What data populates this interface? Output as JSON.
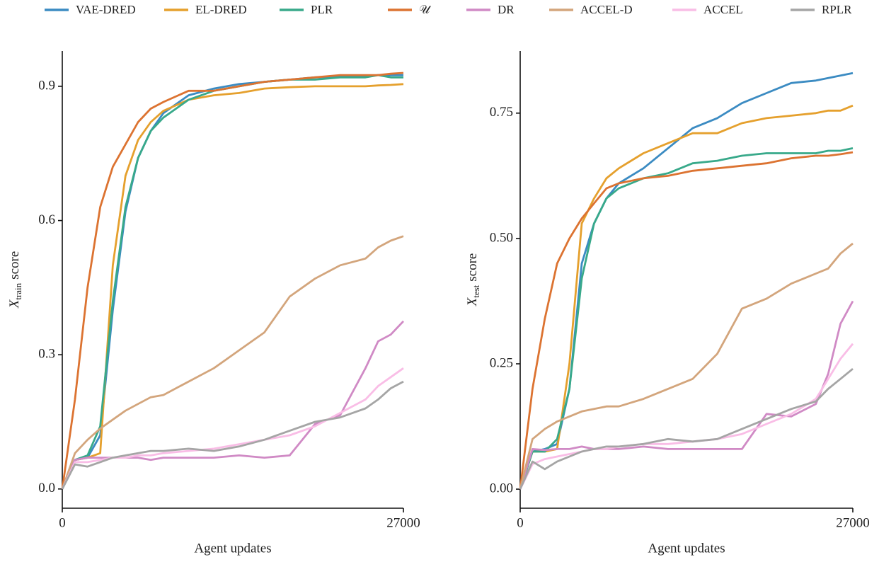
{
  "legend": [
    {
      "name": "VAE-DRED",
      "color": "#3b8bc2"
    },
    {
      "name": "EL-DRED",
      "color": "#e5a02d"
    },
    {
      "name": "PLR",
      "color": "#38a98a"
    },
    {
      "name": "𝒰",
      "color": "#dc7331"
    },
    {
      "name": "DR",
      "color": "#d08ac5"
    },
    {
      "name": "ACCEL-D",
      "color": "#d3a57c"
    },
    {
      "name": "ACCEL",
      "color": "#f9bde6"
    },
    {
      "name": "RPLR",
      "color": "#a5a5a5"
    }
  ],
  "chart_data": [
    {
      "type": "line",
      "xlabel": "Agent updates",
      "ylabel": [
        "X",
        "train",
        "score"
      ],
      "x": [
        0,
        1000,
        2000,
        3000,
        4000,
        5000,
        6000,
        7000,
        8000,
        10000,
        12000,
        14000,
        16000,
        18000,
        20000,
        22000,
        24000,
        25000,
        26000,
        27000
      ],
      "xlim": [
        0,
        27000
      ],
      "xticks": [
        0,
        27000
      ],
      "ylim": [
        -0.043,
        0.979
      ],
      "yticks": [
        {
          "value": 0,
          "label": "0.0"
        },
        0.3,
        0.6,
        0.9
      ],
      "series": [
        {
          "values": [
            0,
            0.065,
            0.07,
            0.12,
            0.4,
            0.62,
            0.74,
            0.8,
            0.84,
            0.88,
            0.895,
            0.905,
            0.91,
            0.915,
            0.92,
            0.922,
            0.923,
            0.925,
            0.925,
            0.925
          ]
        },
        {
          "values": [
            0,
            0.065,
            0.07,
            0.08,
            0.5,
            0.7,
            0.78,
            0.82,
            0.845,
            0.87,
            0.88,
            0.885,
            0.895,
            0.898,
            0.9,
            0.9,
            0.9,
            0.902,
            0.903,
            0.905
          ]
        },
        {
          "values": [
            0,
            0.065,
            0.075,
            0.14,
            0.42,
            0.63,
            0.74,
            0.8,
            0.83,
            0.87,
            0.89,
            0.9,
            0.91,
            0.915,
            0.915,
            0.92,
            0.92,
            0.925,
            0.92,
            0.92
          ]
        },
        {
          "values": [
            0,
            0.2,
            0.45,
            0.63,
            0.72,
            0.77,
            0.82,
            0.85,
            0.865,
            0.89,
            0.89,
            0.9,
            0.91,
            0.915,
            0.92,
            0.925,
            0.925,
            0.925,
            0.928,
            0.93
          ]
        },
        {
          "values": [
            0,
            0.065,
            0.07,
            0.07,
            0.07,
            0.07,
            0.07,
            0.065,
            0.07,
            0.07,
            0.07,
            0.075,
            0.07,
            0.075,
            0.145,
            0.165,
            0.27,
            0.33,
            0.345,
            0.375
          ]
        },
        {
          "values": [
            0,
            0.08,
            0.11,
            0.135,
            0.155,
            0.175,
            0.19,
            0.205,
            0.21,
            0.24,
            0.27,
            0.31,
            0.35,
            0.43,
            0.47,
            0.5,
            0.515,
            0.54,
            0.555,
            0.565
          ]
        },
        {
          "values": [
            0,
            0.06,
            0.06,
            0.065,
            0.07,
            0.07,
            0.075,
            0.075,
            0.08,
            0.085,
            0.09,
            0.1,
            0.11,
            0.12,
            0.14,
            0.17,
            0.2,
            0.23,
            0.25,
            0.27
          ]
        },
        {
          "values": [
            0,
            0.055,
            0.05,
            0.06,
            0.07,
            0.075,
            0.08,
            0.085,
            0.085,
            0.09,
            0.085,
            0.095,
            0.11,
            0.13,
            0.15,
            0.16,
            0.18,
            0.2,
            0.225,
            0.24
          ]
        }
      ]
    },
    {
      "type": "line",
      "xlabel": "Agent updates",
      "ylabel": [
        "X",
        "test",
        "score"
      ],
      "x": [
        0,
        1000,
        2000,
        3000,
        4000,
        5000,
        6000,
        7000,
        8000,
        10000,
        12000,
        14000,
        16000,
        18000,
        20000,
        22000,
        24000,
        25000,
        26000,
        27000
      ],
      "xlim": [
        0,
        27000
      ],
      "xticks": [
        0,
        27000
      ],
      "ylim": [
        -0.038,
        0.874
      ],
      "yticks": [
        {
          "value": 0,
          "label": "0.00"
        },
        {
          "value": 0.25,
          "label": "0.25"
        },
        {
          "value": 0.5,
          "label": "0.50"
        },
        {
          "value": 0.75,
          "label": "0.75"
        }
      ],
      "series": [
        {
          "values": [
            0,
            0.075,
            0.08,
            0.09,
            0.2,
            0.45,
            0.53,
            0.58,
            0.61,
            0.64,
            0.68,
            0.72,
            0.74,
            0.77,
            0.79,
            0.81,
            0.815,
            0.82,
            0.825,
            0.83
          ]
        },
        {
          "values": [
            0,
            0.075,
            0.075,
            0.08,
            0.25,
            0.53,
            0.58,
            0.62,
            0.64,
            0.67,
            0.69,
            0.71,
            0.71,
            0.73,
            0.74,
            0.745,
            0.75,
            0.755,
            0.755,
            0.765
          ]
        },
        {
          "values": [
            0,
            0.075,
            0.075,
            0.1,
            0.2,
            0.42,
            0.53,
            0.58,
            0.6,
            0.62,
            0.63,
            0.65,
            0.655,
            0.665,
            0.67,
            0.67,
            0.67,
            0.675,
            0.675,
            0.68
          ]
        },
        {
          "values": [
            0,
            0.2,
            0.34,
            0.45,
            0.5,
            0.54,
            0.57,
            0.6,
            0.61,
            0.62,
            0.625,
            0.635,
            0.64,
            0.645,
            0.65,
            0.66,
            0.665,
            0.665,
            0.668,
            0.672
          ]
        },
        {
          "values": [
            0,
            0.08,
            0.078,
            0.08,
            0.08,
            0.085,
            0.08,
            0.08,
            0.08,
            0.085,
            0.08,
            0.08,
            0.08,
            0.08,
            0.15,
            0.145,
            0.17,
            0.23,
            0.33,
            0.375
          ]
        },
        {
          "values": [
            0,
            0.1,
            0.12,
            0.135,
            0.145,
            0.155,
            0.16,
            0.165,
            0.165,
            0.18,
            0.2,
            0.22,
            0.27,
            0.36,
            0.38,
            0.41,
            0.43,
            0.44,
            0.47,
            0.49
          ]
        },
        {
          "values": [
            0,
            0.05,
            0.06,
            0.065,
            0.07,
            0.075,
            0.08,
            0.08,
            0.085,
            0.09,
            0.09,
            0.095,
            0.1,
            0.11,
            0.13,
            0.15,
            0.18,
            0.22,
            0.26,
            0.29
          ]
        },
        {
          "values": [
            0,
            0.055,
            0.04,
            0.055,
            0.065,
            0.075,
            0.08,
            0.085,
            0.085,
            0.09,
            0.1,
            0.095,
            0.1,
            0.12,
            0.14,
            0.16,
            0.175,
            0.2,
            0.22,
            0.24
          ]
        }
      ]
    }
  ]
}
